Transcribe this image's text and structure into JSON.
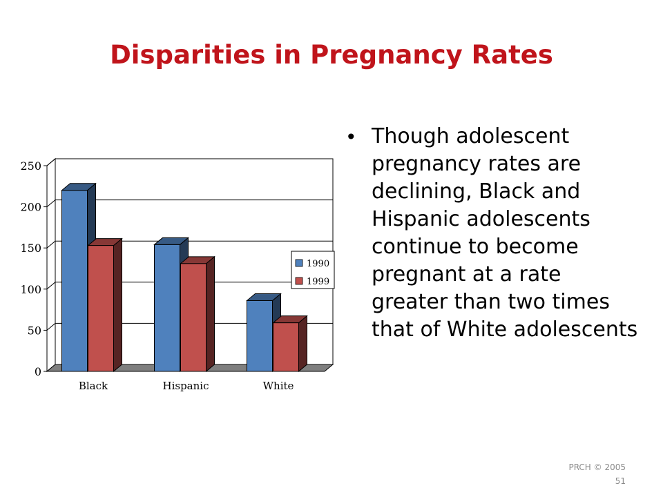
{
  "slide": {
    "title": "Disparities in Pregnancy Rates",
    "bullet": "Though adolescent pregnancy rates are declining, Black and Hispanic adolescents continue to become pregnant at a rate greater than two times that of White adolescents",
    "footer_copyright": "PRCH © 2005",
    "footer_page": "51"
  },
  "chart_data": {
    "type": "bar",
    "style": "3d",
    "categories": [
      "Black",
      "Hispanic",
      "White"
    ],
    "series": [
      {
        "name": "1990",
        "values": [
          220,
          154,
          86
        ],
        "color": "#4f81bd"
      },
      {
        "name": "1999",
        "values": [
          153,
          131,
          59
        ],
        "color": "#c0504d"
      }
    ],
    "ylim": [
      0,
      250
    ],
    "yticks": [
      0,
      50,
      100,
      150,
      200,
      250
    ],
    "grid": true,
    "legend": "right",
    "title": "",
    "xlabel": "",
    "ylabel": ""
  }
}
